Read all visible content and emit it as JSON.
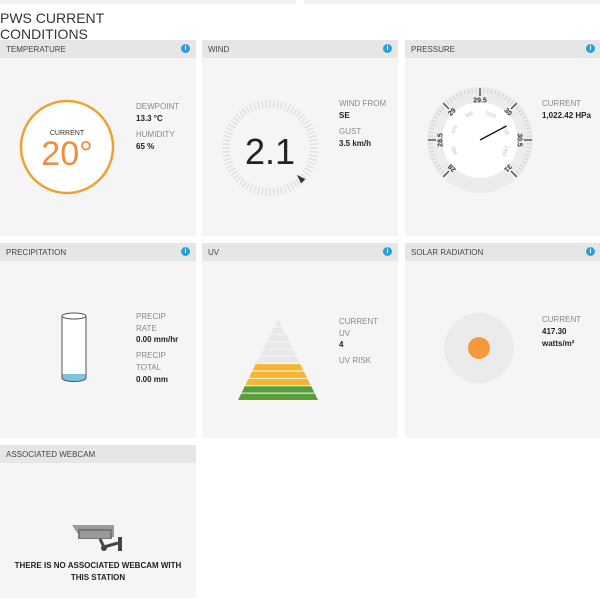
{
  "page_title": "PWS CURRENT CONDITIONS",
  "info_icon": "i",
  "temperature": {
    "header": "TEMPERATURE",
    "current_label": "CURRENT",
    "current_value": "20°",
    "dewpoint_label": "DEWPOINT",
    "dewpoint_value": "13.3 °C",
    "humidity_label": "HUMIDITY",
    "humidity_value": "65 %",
    "ring_color": "#f0a030",
    "text_color": "#f08c3c"
  },
  "wind": {
    "header": "WIND",
    "speed": "2.1",
    "from_label": "WIND FROM",
    "from_value": "SE",
    "gust_label": "GUST",
    "gust_value": "3.5 km/h",
    "direction_deg": 135
  },
  "pressure": {
    "header": "PRESSURE",
    "current_label": "CURRENT",
    "current_value": "1,022.42 HPa",
    "gauge_outer_labels": [
      "28",
      "28.5",
      "29",
      "29.5",
      "30",
      "30.5",
      "31"
    ],
    "gauge_inner_labels": [
      "950",
      "970",
      "990",
      "1010",
      "1030",
      "1050"
    ],
    "needle_inhg": 30.19,
    "gauge_min": 28,
    "gauge_max": 31
  },
  "precipitation": {
    "header": "PRECIPITATION",
    "rate_label_1": "PRECIP",
    "rate_label_2": "RATE",
    "rate_value": "0.00 mm/hr",
    "total_label_1": "PRECIP",
    "total_label_2": "TOTAL",
    "total_value": "0.00 mm",
    "water_color": "#7ec3dd"
  },
  "uv": {
    "header": "UV",
    "current_label_1": "CURRENT",
    "current_label_2": "UV",
    "current_value": "4",
    "risk_label": "UV RISK",
    "colors": {
      "green": "#5a9e3c",
      "yellow": "#f2b630",
      "empty": "#e8e8e8"
    }
  },
  "solar": {
    "header": "SOLAR RADIATION",
    "current_label": "CURRENT",
    "value": "417.30",
    "unit": "watts/m²",
    "sun_color": "#f6993a"
  },
  "webcam": {
    "header": "ASSOCIATED WEBCAM",
    "message_1": "THERE IS NO ASSOCIATED WEBCAM WITH",
    "message_2": "THIS STATION"
  }
}
